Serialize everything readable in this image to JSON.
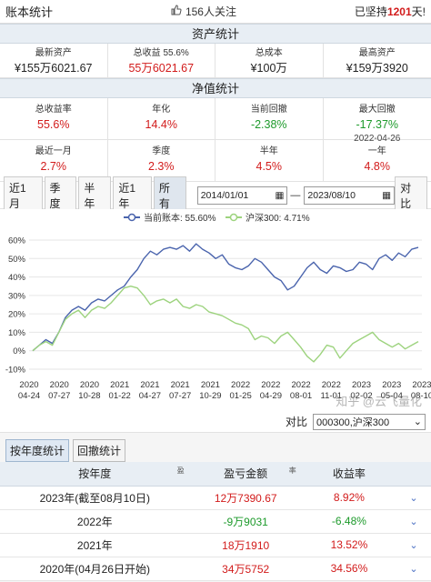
{
  "topbar": {
    "title": "账本统计",
    "follow_text": "156人关注",
    "persist_prefix": "已坚持",
    "persist_days": "1201",
    "persist_suffix": "天!"
  },
  "assets": {
    "heading": "资产统计",
    "items": [
      {
        "label": "最新资产",
        "value": "¥155万6021.67",
        "color": "black"
      },
      {
        "label": "总收益 55.6%",
        "value": "55万6021.67",
        "color": "red"
      },
      {
        "label": "总成本",
        "value": "¥100万",
        "color": "black"
      },
      {
        "label": "最高资产",
        "value": "¥159万3920",
        "color": "black"
      }
    ]
  },
  "netvalue": {
    "heading": "净值统计",
    "items": [
      {
        "label": "总收益率",
        "value": "55.6%",
        "color": "red",
        "sub": ""
      },
      {
        "label": "年化",
        "value": "14.4%",
        "color": "red",
        "sub": ""
      },
      {
        "label": "当前回撤",
        "value": "-2.38%",
        "color": "green",
        "sub": ""
      },
      {
        "label": "最大回撤",
        "value": "-17.37%",
        "color": "green",
        "sub": "2022-04-26"
      },
      {
        "label": "最近一月",
        "value": "2.7%",
        "color": "red",
        "sub": ""
      },
      {
        "label": "季度",
        "value": "2.3%",
        "color": "red",
        "sub": ""
      },
      {
        "label": "半年",
        "value": "4.5%",
        "color": "red",
        "sub": ""
      },
      {
        "label": "一年",
        "value": "4.8%",
        "color": "red",
        "sub": ""
      }
    ]
  },
  "toolbar": {
    "ranges": [
      "近1月",
      "季度",
      "半年",
      "近1年",
      "所有"
    ],
    "active": "所有",
    "start_date": "2014/01/01",
    "end_date": "2023/08/10",
    "date_dash": "—",
    "compare_button": "对比"
  },
  "chart_data": {
    "type": "line",
    "legend": [
      {
        "name": "当前账本: 55.60%",
        "color": "#4a64ad"
      },
      {
        "name": "沪深300: 4.71%",
        "color": "#9dd37e"
      }
    ],
    "y_ticks": [
      "60%",
      "50%",
      "40%",
      "30%",
      "20%",
      "10%",
      "0%",
      "-10%"
    ],
    "ylim": [
      -10,
      60
    ],
    "x_ticks": [
      [
        "2020",
        "04-24"
      ],
      [
        "2020",
        "07-27"
      ],
      [
        "2020",
        "10-28"
      ],
      [
        "2021",
        "01-22"
      ],
      [
        "2021",
        "04-27"
      ],
      [
        "2021",
        "07-27"
      ],
      [
        "2021",
        "10-29"
      ],
      [
        "2022",
        "01-25"
      ],
      [
        "2022",
        "04-29"
      ],
      [
        "2022",
        "08-01"
      ],
      [
        "2022",
        "11-01"
      ],
      [
        "2023",
        "02-02"
      ],
      [
        "2023",
        "05-04"
      ],
      [
        "2023",
        "08-10"
      ]
    ],
    "series": [
      {
        "name": "当前账本",
        "color": "#4a64ad",
        "values": [
          0,
          3,
          6,
          4,
          10,
          18,
          22,
          24,
          22,
          26,
          28,
          27,
          30,
          33,
          35,
          40,
          44,
          50,
          54,
          52,
          55,
          56,
          55,
          57,
          54,
          58,
          55,
          53,
          50,
          52,
          47,
          45,
          44,
          46,
          50,
          48,
          44,
          40,
          38,
          33,
          35,
          40,
          45,
          48,
          44,
          42,
          46,
          45,
          43,
          44,
          48,
          47,
          44,
          50,
          52,
          49,
          53,
          51,
          55,
          56
        ]
      },
      {
        "name": "沪深300",
        "color": "#9dd37e",
        "values": [
          0,
          3,
          5,
          3,
          10,
          17,
          20,
          22,
          18,
          22,
          24,
          23,
          26,
          30,
          34,
          35,
          34,
          30,
          25,
          27,
          28,
          26,
          28,
          24,
          23,
          25,
          24,
          21,
          20,
          19,
          17,
          15,
          14,
          12,
          6,
          8,
          7,
          4,
          8,
          10,
          6,
          2,
          -3,
          -6,
          -2,
          3,
          2,
          -4,
          0,
          4,
          6,
          8,
          10,
          6,
          4,
          2,
          4,
          1,
          3,
          5
        ]
      }
    ],
    "title": "",
    "xlabel": "",
    "ylabel": ""
  },
  "compare": {
    "label": "对比",
    "value": "000300,沪深300"
  },
  "tabs": [
    "按年度统计",
    "回撤统计"
  ],
  "yearly": {
    "headers": [
      "按年度",
      "盈亏金额",
      "收益率"
    ],
    "rows": [
      {
        "year": "2023年(截至08月10日)",
        "pnl": "12万7390.67",
        "rate": "8.92%",
        "pnl_color": "red",
        "rate_color": "red"
      },
      {
        "year": "2022年",
        "pnl": "-9万9031",
        "rate": "-6.48%",
        "pnl_color": "green",
        "rate_color": "green"
      },
      {
        "year": "2021年",
        "pnl": "18万1910",
        "rate": "13.52%",
        "pnl_color": "red",
        "rate_color": "red"
      },
      {
        "year": "2020年(04月26日开始)",
        "pnl": "34万5752",
        "rate": "34.56%",
        "pnl_color": "red",
        "rate_color": "red"
      }
    ]
  },
  "watermark": "知乎 @云飞量化"
}
